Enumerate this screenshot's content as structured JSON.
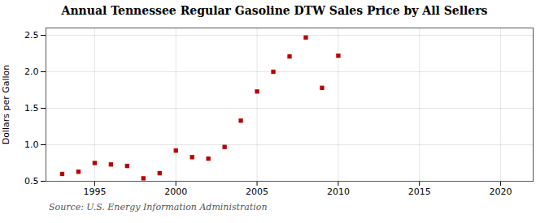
{
  "chart_data": {
    "type": "scatter",
    "title": "Annual Tennessee Regular Gasoline DTW Sales Price by All Sellers",
    "ylabel": "Dollars per Gallon",
    "caption": "Source: U.S. Energy Information Administration",
    "x": [
      1993,
      1994,
      1995,
      1996,
      1997,
      1998,
      1999,
      2000,
      2001,
      2002,
      2003,
      2004,
      2005,
      2006,
      2007,
      2008,
      2009,
      2010
    ],
    "values": [
      0.6,
      0.63,
      0.75,
      0.73,
      0.71,
      0.54,
      0.61,
      0.92,
      0.83,
      0.81,
      0.97,
      1.33,
      1.73,
      2.0,
      2.21,
      2.47,
      1.78,
      2.22
    ],
    "color": "#bb0000",
    "marker": "square",
    "xlim": [
      1992,
      2022
    ],
    "xticks": [
      1995,
      2000,
      2005,
      2010,
      2015,
      2020
    ],
    "ylim": [
      0.5,
      2.6
    ],
    "yticks": [
      0.5,
      {
        "value": 1.0,
        "label": "1.0"
      },
      1.5,
      {
        "value": 2.0,
        "label": "2.0"
      },
      2.5
    ],
    "grid": true
  }
}
